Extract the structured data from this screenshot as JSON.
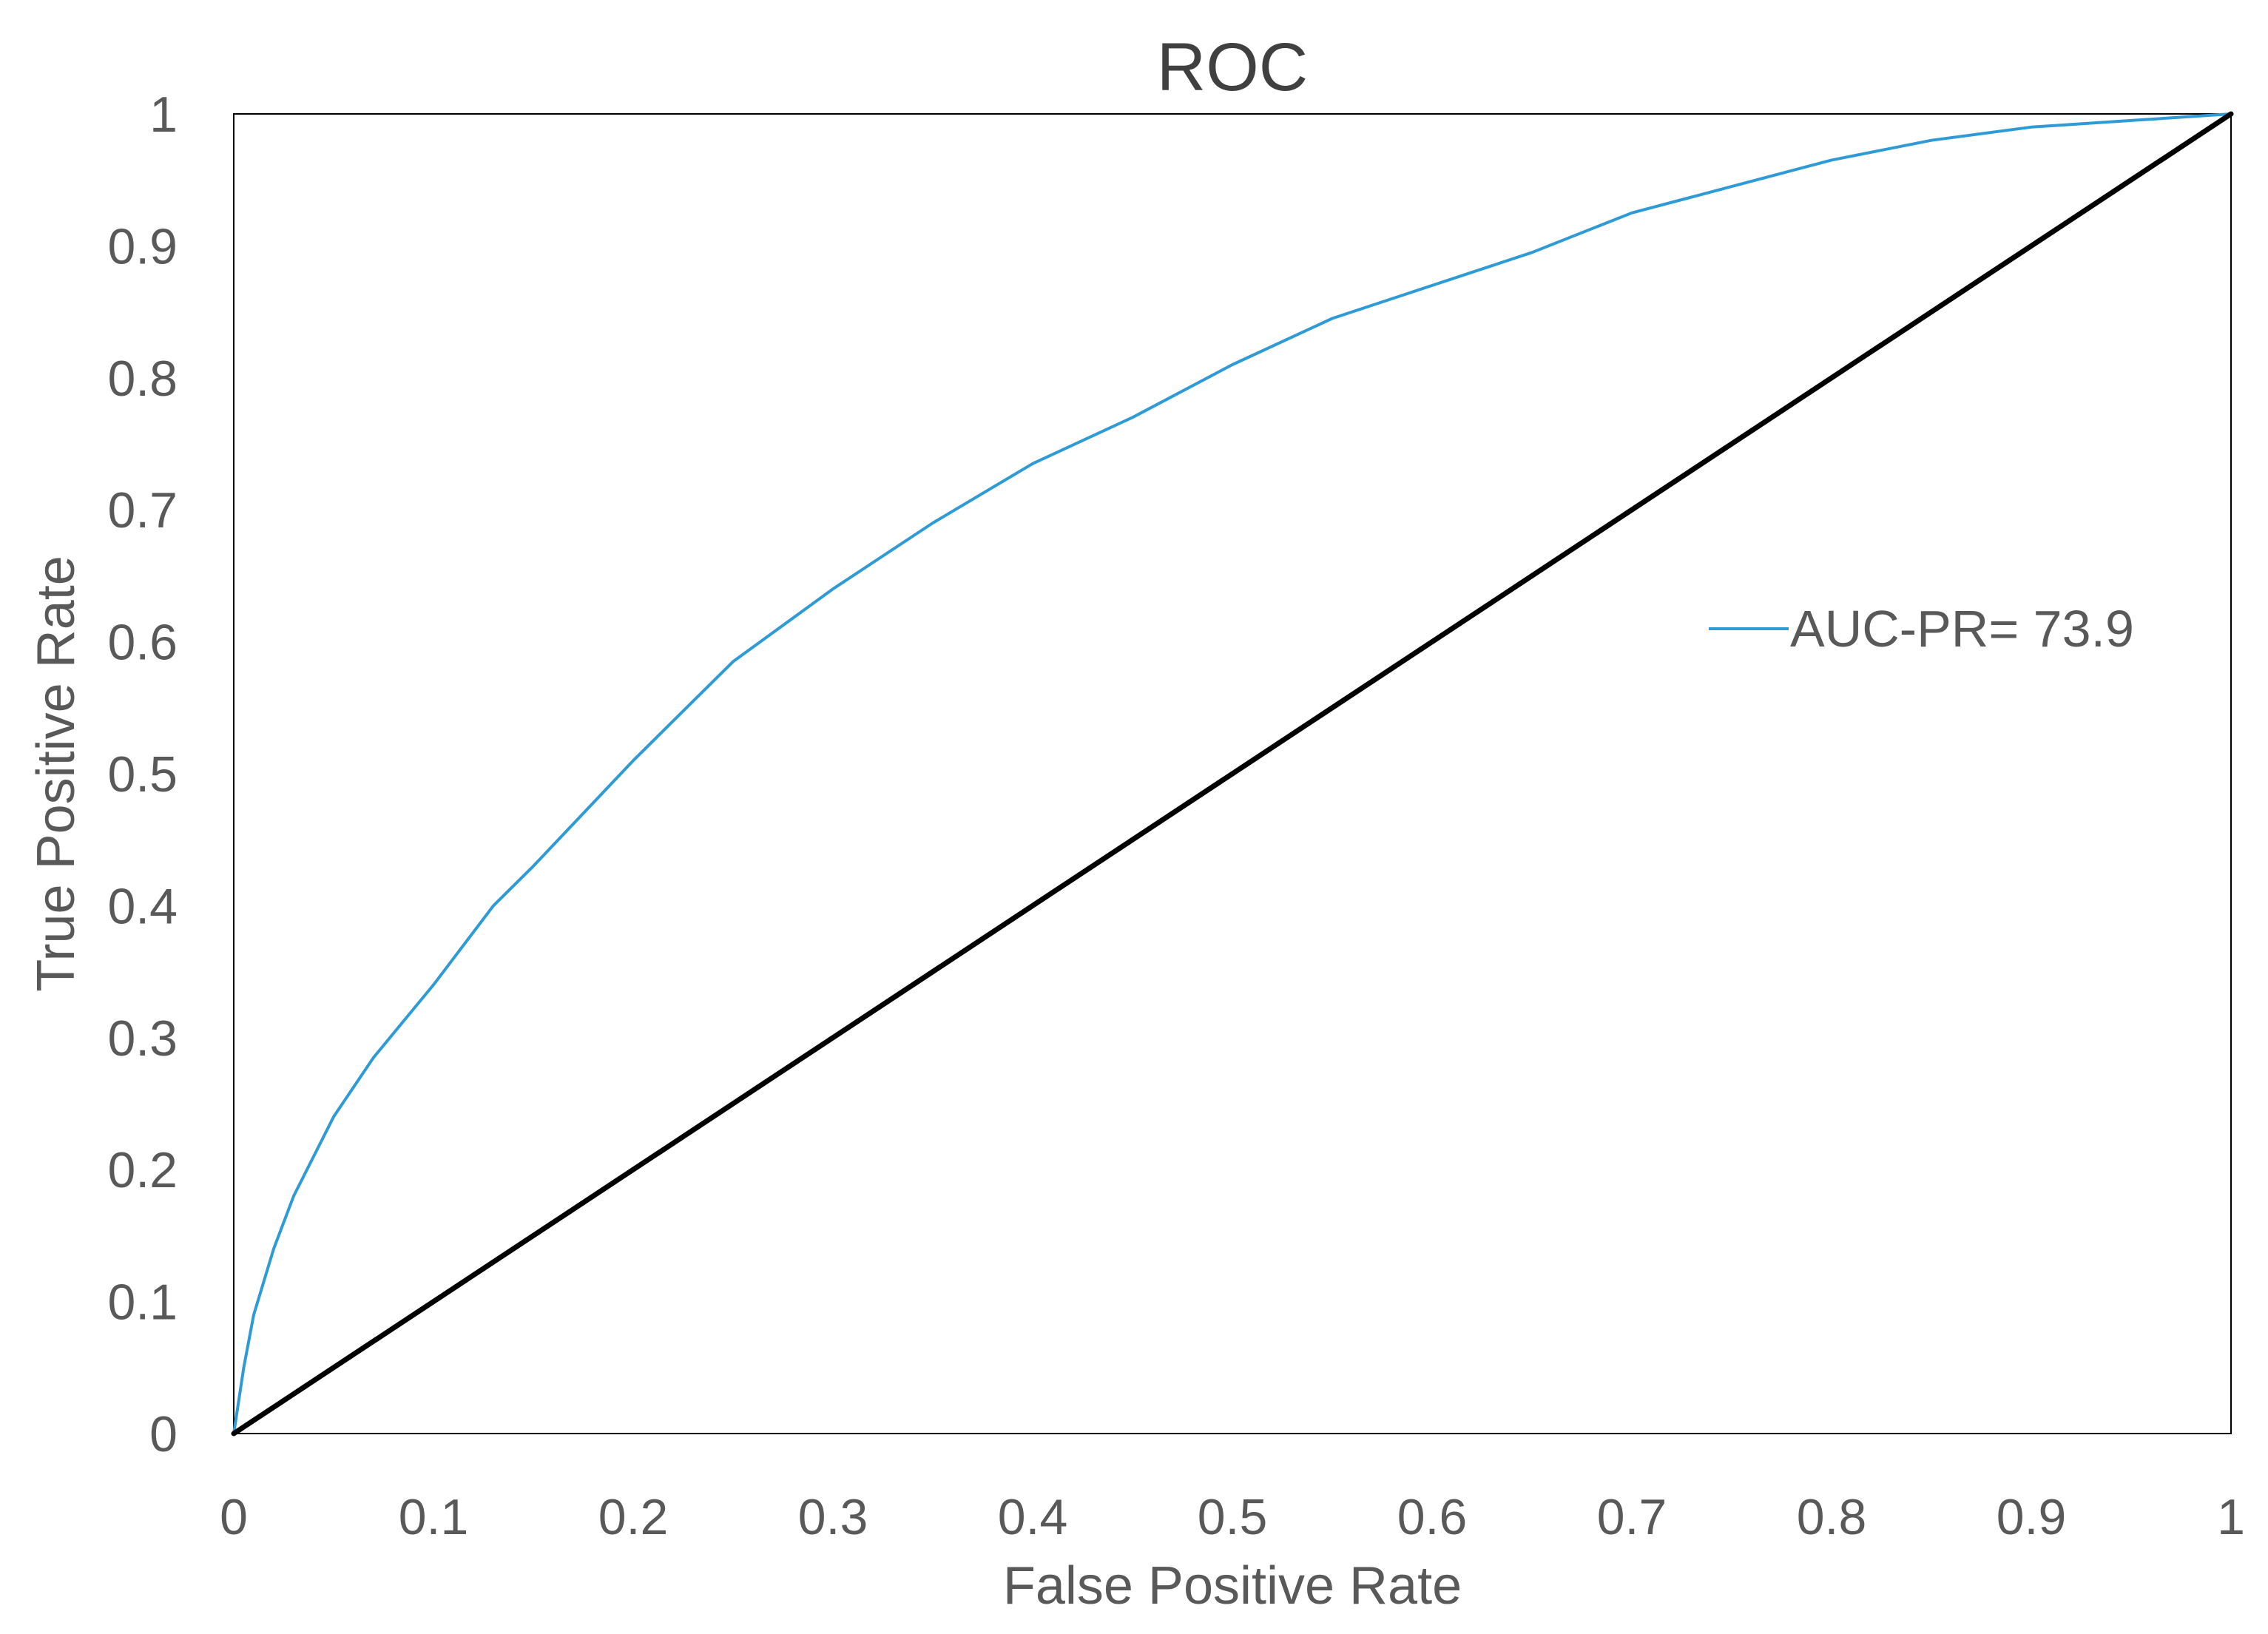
{
  "chart_data": {
    "type": "line",
    "title": "ROC",
    "xlabel": "False Positive Rate",
    "ylabel": "True Positive Rate",
    "xlim": [
      0,
      1
    ],
    "ylim": [
      0,
      1
    ],
    "x_ticks": [
      "0",
      "0.1",
      "0.2",
      "0.3",
      "0.4",
      "0.5",
      "0.6",
      "0.7",
      "0.8",
      "0.9",
      "1"
    ],
    "y_ticks": [
      "0",
      "0.1",
      "0.2",
      "0.3",
      "0.4",
      "0.5",
      "0.6",
      "0.7",
      "0.8",
      "0.9",
      "1"
    ],
    "grid": false,
    "legend_position": "right",
    "series": [
      {
        "name": "AUC-PR= 73.9",
        "color": "#2e9bd6",
        "x": [
          0,
          0.005,
          0.01,
          0.02,
          0.03,
          0.05,
          0.07,
          0.1,
          0.13,
          0.15,
          0.2,
          0.25,
          0.3,
          0.35,
          0.4,
          0.45,
          0.5,
          0.55,
          0.6,
          0.65,
          0.7,
          0.75,
          0.8,
          0.85,
          0.9,
          0.95,
          1
        ],
        "y": [
          0,
          0.05,
          0.09,
          0.14,
          0.18,
          0.24,
          0.285,
          0.34,
          0.4,
          0.43,
          0.51,
          0.585,
          0.64,
          0.69,
          0.735,
          0.77,
          0.81,
          0.845,
          0.87,
          0.895,
          0.925,
          0.945,
          0.965,
          0.98,
          0.99,
          0.995,
          1
        ]
      },
      {
        "color": "#000000",
        "x": [
          0,
          1
        ],
        "y": [
          0,
          1
        ]
      }
    ]
  }
}
